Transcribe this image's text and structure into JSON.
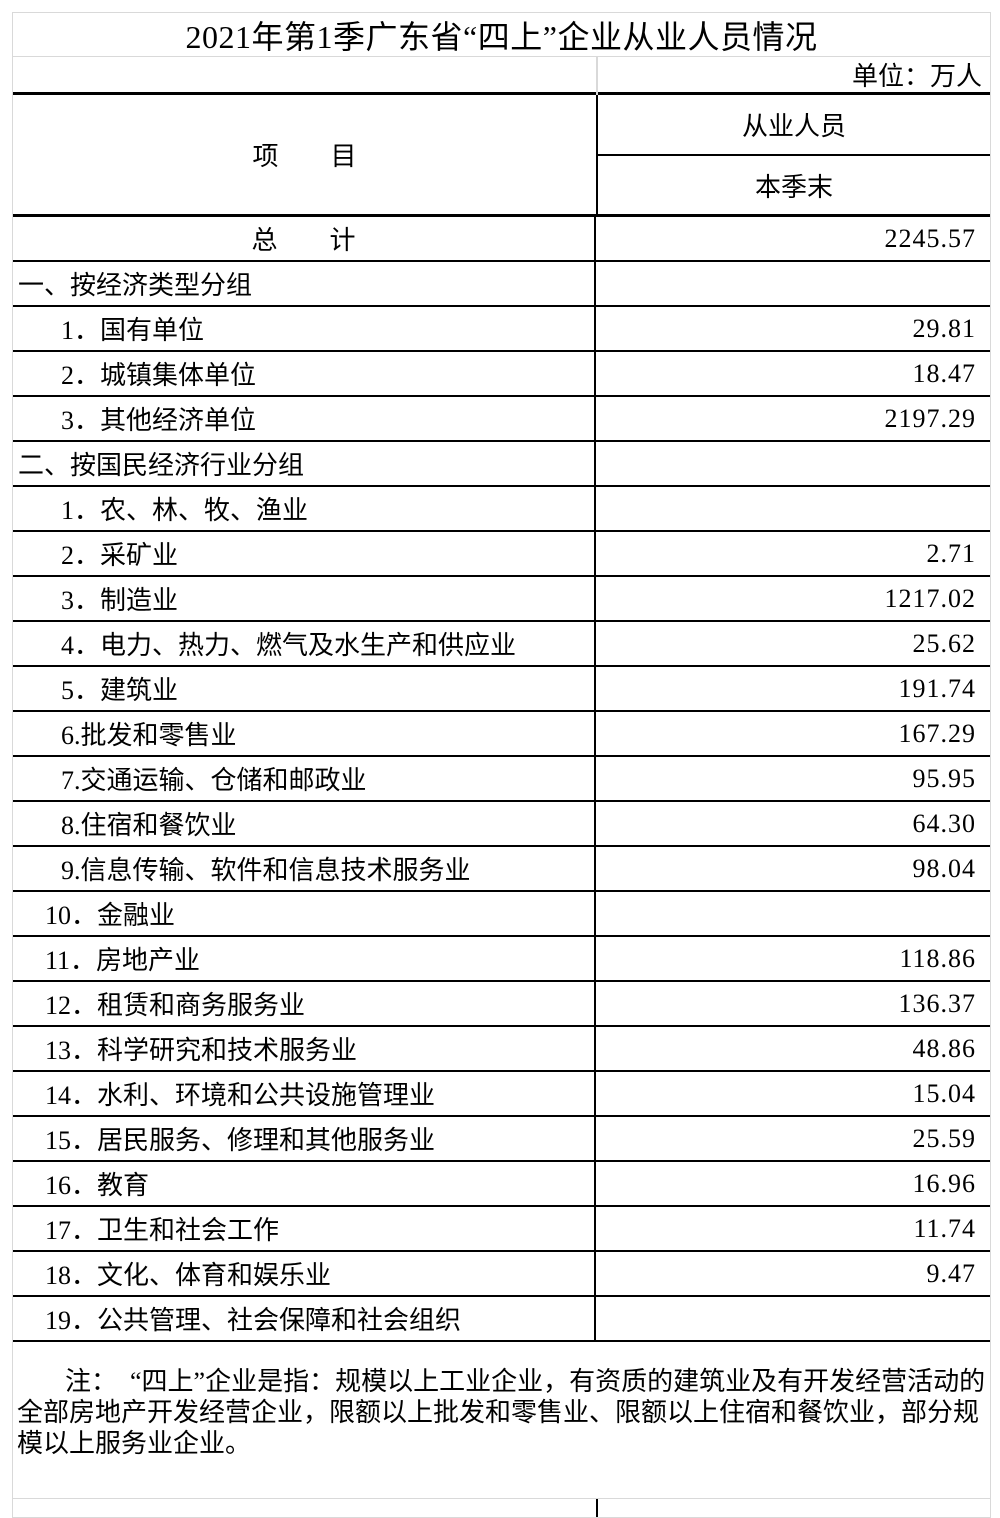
{
  "colors": {
    "border_light": "#d9d9d9",
    "border_dark": "#000000",
    "text": "#000000",
    "background": "#ffffff"
  },
  "table": {
    "title": "2021年第1季广东省“四上”企业从业人员情况",
    "unit_label": "单位：万人",
    "columns": {
      "item_header": "项　　目",
      "employee_header": "从业人员",
      "period_header": "本季末"
    },
    "rows": [
      {
        "label": "总　　计",
        "value": "2245.57",
        "level": "total"
      },
      {
        "label": "一、按经济类型分组",
        "value": "",
        "level": "section"
      },
      {
        "label": "1．国有单位",
        "value": "29.81",
        "level": "item"
      },
      {
        "label": "2．城镇集体单位",
        "value": "18.47",
        "level": "item"
      },
      {
        "label": "3．其他经济单位",
        "value": "2197.29",
        "level": "item"
      },
      {
        "label": "二、按国民经济行业分组",
        "value": "",
        "level": "section"
      },
      {
        "label": "1．农、林、牧、渔业",
        "value": "",
        "level": "item"
      },
      {
        "label": "2．采矿业",
        "value": "2.71",
        "level": "item"
      },
      {
        "label": "3．制造业",
        "value": "1217.02",
        "level": "item"
      },
      {
        "label": "4．电力、热力、燃气及水生产和供应业",
        "value": "25.62",
        "level": "item"
      },
      {
        "label": "5．建筑业",
        "value": "191.74",
        "level": "item"
      },
      {
        "label": "6.批发和零售业",
        "value": "167.29",
        "level": "item"
      },
      {
        "label": "7.交通运输、仓储和邮政业",
        "value": "95.95",
        "level": "item"
      },
      {
        "label": "8.住宿和餐饮业",
        "value": "64.30",
        "level": "item"
      },
      {
        "label": "9.信息传输、软件和信息技术服务业",
        "value": "98.04",
        "level": "item"
      },
      {
        "label": "10．金融业",
        "value": "",
        "level": "item2"
      },
      {
        "label": "11．房地产业",
        "value": "118.86",
        "level": "item2"
      },
      {
        "label": "12．租赁和商务服务业",
        "value": "136.37",
        "level": "item2"
      },
      {
        "label": "13．科学研究和技术服务业",
        "value": "48.86",
        "level": "item2"
      },
      {
        "label": "14．水利、环境和公共设施管理业",
        "value": "15.04",
        "level": "item2"
      },
      {
        "label": "15．居民服务、修理和其他服务业",
        "value": "25.59",
        "level": "item2"
      },
      {
        "label": "16．教育",
        "value": "16.96",
        "level": "item2"
      },
      {
        "label": "17．卫生和社会工作",
        "value": "11.74",
        "level": "item2"
      },
      {
        "label": "18．文化、体育和娱乐业",
        "value": "9.47",
        "level": "item2"
      },
      {
        "label": "19．公共管理、社会保障和社会组织",
        "value": "",
        "level": "item2"
      }
    ],
    "note": {
      "lines": [
        "注：　“四上”企业是指：规模以上工业企业，有资质的建筑业及有开发经营活动的",
        "全部房地产开发经营企业，限额以上批发和零售业、限额以上住宿和餐饮业，部分规",
        "模以上服务业企业。"
      ]
    }
  }
}
